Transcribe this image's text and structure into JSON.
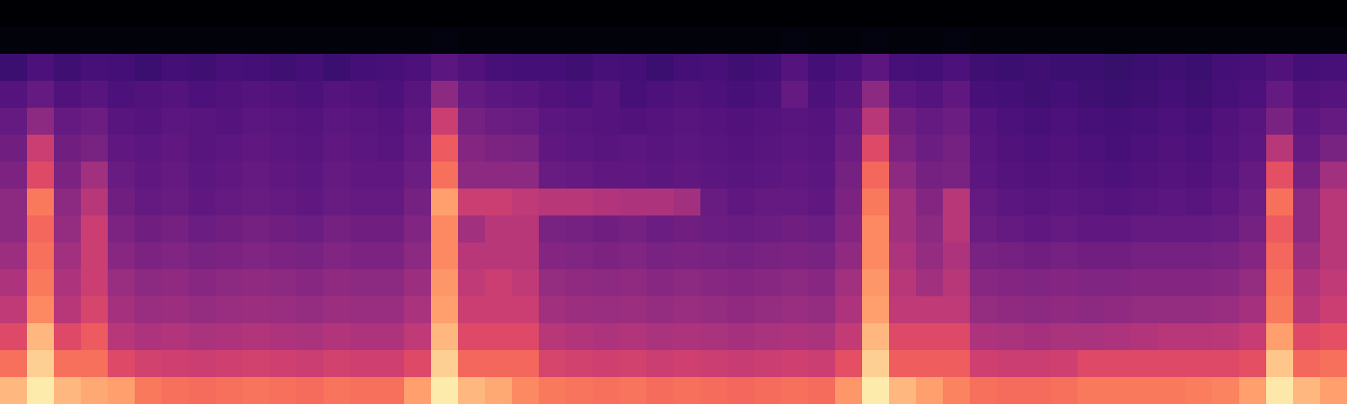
{
  "chart_data": {
    "type": "heatmap",
    "tick_labels": false,
    "color": "magma",
    "zlim": [
      0,
      1
    ],
    "cells": [
      [
        0,
        0,
        0,
        0,
        0,
        0,
        0,
        0,
        0,
        0,
        0,
        0,
        0,
        0,
        0,
        0,
        0,
        0,
        0,
        0,
        0,
        0,
        0,
        0,
        0,
        0,
        0,
        0,
        0,
        0,
        0,
        0,
        0,
        0,
        0,
        0,
        0,
        0,
        0,
        0,
        0,
        0,
        0,
        0,
        0,
        0,
        0,
        0,
        0,
        0
      ],
      [
        0.02,
        0.02,
        0.02,
        0.02,
        0.02,
        0.02,
        0.02,
        0.02,
        0.02,
        0.02,
        0.02,
        0.02,
        0.02,
        0.02,
        0.02,
        0.02,
        0.03,
        0.02,
        0.02,
        0.02,
        0.02,
        0.02,
        0.02,
        0.02,
        0.02,
        0.02,
        0.02,
        0.02,
        0.02,
        0.03,
        0.02,
        0.02,
        0.03,
        0.02,
        0.02,
        0.03,
        0.02,
        0.02,
        0.02,
        0.02,
        0.02,
        0.02,
        0.02,
        0.02,
        0.02,
        0.02,
        0.02,
        0.02,
        0.02,
        0.02
      ],
      [
        0.2,
        0.24,
        0.21,
        0.23,
        0.22,
        0.2,
        0.22,
        0.21,
        0.23,
        0.22,
        0.21,
        0.22,
        0.2,
        0.22,
        0.23,
        0.24,
        0.28,
        0.25,
        0.23,
        0.22,
        0.22,
        0.21,
        0.23,
        0.22,
        0.2,
        0.22,
        0.23,
        0.21,
        0.22,
        0.26,
        0.22,
        0.24,
        0.28,
        0.23,
        0.22,
        0.24,
        0.21,
        0.2,
        0.21,
        0.2,
        0.2,
        0.19,
        0.2,
        0.21,
        0.2,
        0.22,
        0.23,
        0.25,
        0.22,
        0.23
      ],
      [
        0.26,
        0.3,
        0.25,
        0.27,
        0.24,
        0.25,
        0.26,
        0.24,
        0.25,
        0.26,
        0.25,
        0.24,
        0.26,
        0.25,
        0.24,
        0.27,
        0.4,
        0.3,
        0.28,
        0.27,
        0.25,
        0.24,
        0.26,
        0.23,
        0.24,
        0.25,
        0.24,
        0.23,
        0.24,
        0.3,
        0.24,
        0.27,
        0.4,
        0.28,
        0.26,
        0.29,
        0.23,
        0.22,
        0.21,
        0.22,
        0.21,
        0.2,
        0.21,
        0.22,
        0.21,
        0.23,
        0.24,
        0.3,
        0.25,
        0.26
      ],
      [
        0.3,
        0.4,
        0.3,
        0.32,
        0.27,
        0.26,
        0.28,
        0.27,
        0.26,
        0.28,
        0.27,
        0.26,
        0.28,
        0.27,
        0.26,
        0.29,
        0.55,
        0.34,
        0.32,
        0.31,
        0.28,
        0.27,
        0.26,
        0.25,
        0.26,
        0.27,
        0.26,
        0.25,
        0.26,
        0.27,
        0.26,
        0.3,
        0.5,
        0.33,
        0.3,
        0.32,
        0.26,
        0.24,
        0.23,
        0.24,
        0.23,
        0.22,
        0.23,
        0.24,
        0.23,
        0.25,
        0.27,
        0.35,
        0.28,
        0.3
      ],
      [
        0.33,
        0.55,
        0.33,
        0.35,
        0.29,
        0.28,
        0.29,
        0.27,
        0.28,
        0.29,
        0.28,
        0.27,
        0.29,
        0.28,
        0.27,
        0.3,
        0.65,
        0.38,
        0.36,
        0.35,
        0.29,
        0.28,
        0.27,
        0.28,
        0.27,
        0.28,
        0.27,
        0.26,
        0.27,
        0.28,
        0.27,
        0.32,
        0.6,
        0.36,
        0.32,
        0.34,
        0.27,
        0.25,
        0.24,
        0.25,
        0.24,
        0.23,
        0.24,
        0.25,
        0.24,
        0.26,
        0.28,
        0.5,
        0.3,
        0.35
      ],
      [
        0.36,
        0.6,
        0.36,
        0.45,
        0.31,
        0.29,
        0.3,
        0.28,
        0.29,
        0.3,
        0.29,
        0.28,
        0.3,
        0.29,
        0.29,
        0.32,
        0.7,
        0.4,
        0.4,
        0.4,
        0.31,
        0.3,
        0.29,
        0.29,
        0.28,
        0.29,
        0.28,
        0.27,
        0.28,
        0.29,
        0.28,
        0.34,
        0.68,
        0.4,
        0.34,
        0.35,
        0.28,
        0.26,
        0.25,
        0.26,
        0.25,
        0.24,
        0.25,
        0.26,
        0.25,
        0.27,
        0.3,
        0.62,
        0.34,
        0.45
      ],
      [
        0.4,
        0.72,
        0.4,
        0.5,
        0.33,
        0.3,
        0.31,
        0.29,
        0.3,
        0.31,
        0.3,
        0.29,
        0.31,
        0.3,
        0.3,
        0.34,
        0.8,
        0.55,
        0.55,
        0.52,
        0.5,
        0.5,
        0.49,
        0.48,
        0.48,
        0.45,
        0.31,
        0.29,
        0.3,
        0.3,
        0.29,
        0.36,
        0.72,
        0.45,
        0.38,
        0.5,
        0.3,
        0.28,
        0.27,
        0.28,
        0.27,
        0.26,
        0.27,
        0.28,
        0.27,
        0.29,
        0.32,
        0.7,
        0.4,
        0.5
      ],
      [
        0.4,
        0.68,
        0.42,
        0.55,
        0.36,
        0.33,
        0.34,
        0.32,
        0.33,
        0.34,
        0.33,
        0.32,
        0.34,
        0.33,
        0.33,
        0.37,
        0.75,
        0.45,
        0.5,
        0.5,
        0.35,
        0.34,
        0.33,
        0.34,
        0.32,
        0.33,
        0.32,
        0.31,
        0.32,
        0.33,
        0.32,
        0.38,
        0.75,
        0.45,
        0.4,
        0.5,
        0.32,
        0.3,
        0.29,
        0.3,
        0.29,
        0.29,
        0.3,
        0.3,
        0.3,
        0.31,
        0.34,
        0.65,
        0.4,
        0.5
      ],
      [
        0.44,
        0.7,
        0.45,
        0.55,
        0.39,
        0.36,
        0.37,
        0.35,
        0.36,
        0.37,
        0.36,
        0.35,
        0.37,
        0.36,
        0.36,
        0.4,
        0.75,
        0.5,
        0.5,
        0.5,
        0.38,
        0.37,
        0.36,
        0.37,
        0.35,
        0.36,
        0.35,
        0.34,
        0.35,
        0.36,
        0.35,
        0.41,
        0.75,
        0.48,
        0.42,
        0.48,
        0.35,
        0.34,
        0.33,
        0.34,
        0.33,
        0.33,
        0.34,
        0.34,
        0.34,
        0.35,
        0.38,
        0.68,
        0.44,
        0.5
      ],
      [
        0.48,
        0.72,
        0.48,
        0.55,
        0.43,
        0.4,
        0.41,
        0.39,
        0.4,
        0.41,
        0.4,
        0.39,
        0.41,
        0.4,
        0.4,
        0.44,
        0.78,
        0.52,
        0.55,
        0.52,
        0.42,
        0.41,
        0.4,
        0.41,
        0.39,
        0.4,
        0.39,
        0.38,
        0.39,
        0.4,
        0.39,
        0.45,
        0.78,
        0.5,
        0.45,
        0.5,
        0.39,
        0.38,
        0.37,
        0.38,
        0.37,
        0.37,
        0.38,
        0.38,
        0.38,
        0.39,
        0.42,
        0.7,
        0.48,
        0.52
      ],
      [
        0.52,
        0.75,
        0.5,
        0.58,
        0.46,
        0.43,
        0.44,
        0.42,
        0.43,
        0.44,
        0.43,
        0.42,
        0.44,
        0.43,
        0.43,
        0.47,
        0.8,
        0.55,
        0.55,
        0.55,
        0.45,
        0.44,
        0.43,
        0.44,
        0.42,
        0.43,
        0.42,
        0.41,
        0.42,
        0.43,
        0.42,
        0.48,
        0.8,
        0.52,
        0.52,
        0.52,
        0.42,
        0.41,
        0.4,
        0.41,
        0.4,
        0.41,
        0.42,
        0.42,
        0.42,
        0.43,
        0.46,
        0.72,
        0.5,
        0.55
      ],
      [
        0.6,
        0.85,
        0.6,
        0.65,
        0.5,
        0.48,
        0.49,
        0.47,
        0.48,
        0.49,
        0.48,
        0.47,
        0.49,
        0.48,
        0.48,
        0.52,
        0.85,
        0.6,
        0.6,
        0.6,
        0.5,
        0.49,
        0.48,
        0.49,
        0.47,
        0.48,
        0.47,
        0.46,
        0.47,
        0.48,
        0.47,
        0.53,
        0.85,
        0.6,
        0.6,
        0.6,
        0.48,
        0.47,
        0.46,
        0.47,
        0.47,
        0.48,
        0.49,
        0.5,
        0.5,
        0.51,
        0.54,
        0.8,
        0.6,
        0.62
      ],
      [
        0.7,
        0.9,
        0.7,
        0.7,
        0.6,
        0.57,
        0.56,
        0.55,
        0.56,
        0.57,
        0.56,
        0.55,
        0.57,
        0.56,
        0.56,
        0.6,
        0.9,
        0.68,
        0.68,
        0.68,
        0.58,
        0.57,
        0.56,
        0.57,
        0.55,
        0.56,
        0.55,
        0.54,
        0.55,
        0.56,
        0.55,
        0.62,
        0.9,
        0.66,
        0.66,
        0.66,
        0.56,
        0.55,
        0.55,
        0.56,
        0.6,
        0.6,
        0.6,
        0.6,
        0.6,
        0.6,
        0.62,
        0.88,
        0.68,
        0.7
      ],
      [
        0.85,
        0.96,
        0.85,
        0.82,
        0.8,
        0.72,
        0.7,
        0.69,
        0.7,
        0.71,
        0.7,
        0.69,
        0.71,
        0.7,
        0.7,
        0.8,
        0.96,
        0.85,
        0.82,
        0.75,
        0.72,
        0.71,
        0.7,
        0.71,
        0.69,
        0.7,
        0.69,
        0.68,
        0.69,
        0.7,
        0.69,
        0.78,
        0.96,
        0.85,
        0.8,
        0.74,
        0.7,
        0.69,
        0.69,
        0.7,
        0.72,
        0.72,
        0.72,
        0.72,
        0.73,
        0.74,
        0.8,
        0.95,
        0.85,
        0.8
      ]
    ]
  }
}
